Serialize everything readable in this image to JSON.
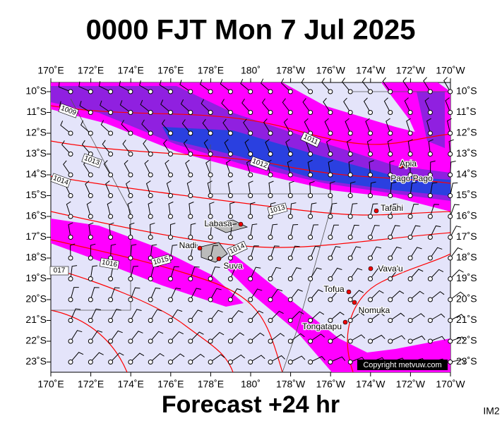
{
  "title": "0000 FJT Mon 7 Jul 2025",
  "footer": "Forecast +24 hr",
  "image_id": "IM2",
  "copyright": "Copyright metvuw.com",
  "longitude_labels": [
    "170˚E",
    "172˚E",
    "174˚E",
    "176˚E",
    "178˚E",
    "180˚",
    "178˚W",
    "176˚W",
    "174˚W",
    "172˚W",
    "170˚W"
  ],
  "latitude_labels": [
    "10˚S",
    "11˚S",
    "12˚S",
    "13˚S",
    "14˚S",
    "15˚S",
    "16˚S",
    "17˚S",
    "18˚S",
    "19˚S",
    "20˚S",
    "21˚S",
    "22˚S",
    "23˚S"
  ],
  "places": [
    "Apia",
    "Pago Pago",
    "Tafahi",
    "Labasa",
    "Nadi",
    "Suva",
    "Vava'u",
    "Tofua",
    "Nomuka",
    "Tongatapu"
  ],
  "isobar_labels": [
    "1009",
    "1013",
    "1014",
    "1011",
    "1012",
    "1013",
    "1014",
    "1015",
    "1016",
    "017"
  ]
}
